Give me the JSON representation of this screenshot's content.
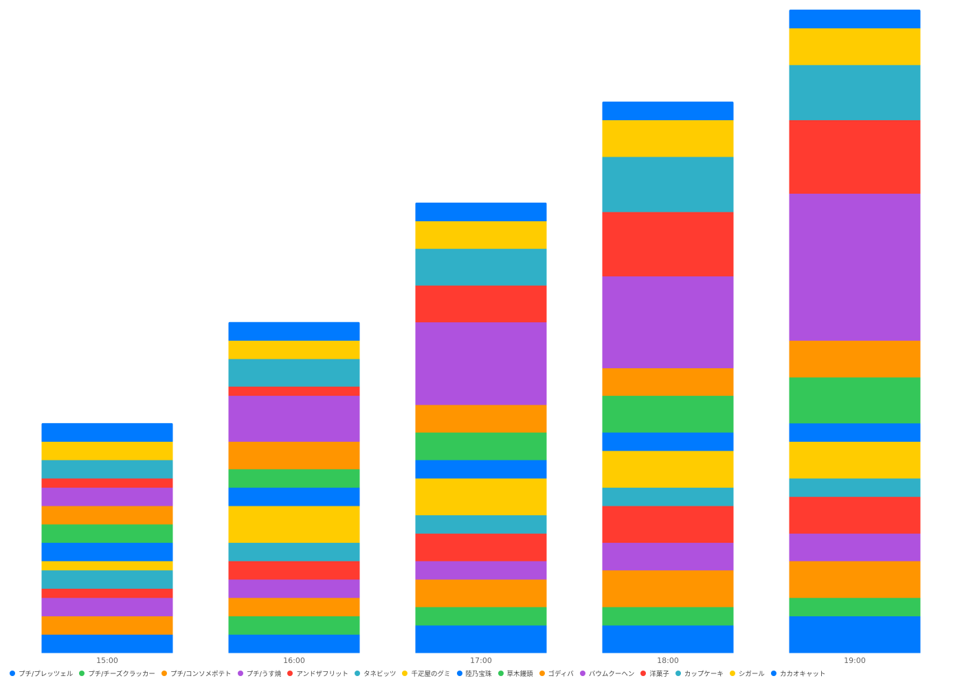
{
  "chart_data": {
    "type": "bar",
    "stacked": true,
    "categories": [
      "15:00",
      "16:00",
      "17:00",
      "18:00",
      "19:00"
    ],
    "ylim": [
      0,
      70
    ],
    "legend_position": "bottom",
    "grid": false,
    "series": [
      {
        "name": "プチ/プレッツェル",
        "color": "#007aff",
        "values": [
          2,
          2,
          3,
          3,
          4
        ]
      },
      {
        "name": "プチ/チーズクラッカー",
        "color": "#34c759",
        "values": [
          0,
          2,
          2,
          2,
          2
        ]
      },
      {
        "name": "プチ/コンソメポテト",
        "color": "#ff9500",
        "values": [
          2,
          2,
          3,
          4,
          4
        ]
      },
      {
        "name": "プチ/うす焼",
        "color": "#af52de",
        "values": [
          2,
          2,
          2,
          3,
          3
        ]
      },
      {
        "name": "アンドザフリット",
        "color": "#ff3b30",
        "values": [
          1,
          2,
          3,
          4,
          4
        ]
      },
      {
        "name": "タネビッツ",
        "color": "#30b0c7",
        "values": [
          2,
          2,
          2,
          2,
          2
        ]
      },
      {
        "name": "千疋屋のグミ",
        "color": "#ffcc00",
        "values": [
          1,
          4,
          4,
          4,
          4
        ]
      },
      {
        "name": "陸乃宝珠",
        "color": "#007aff",
        "values": [
          2,
          2,
          2,
          2,
          2
        ]
      },
      {
        "name": "草木饅頭",
        "color": "#34c759",
        "values": [
          2,
          2,
          3,
          4,
          5
        ]
      },
      {
        "name": "ゴディバ",
        "color": "#ff9500",
        "values": [
          2,
          3,
          3,
          3,
          4
        ]
      },
      {
        "name": "バウムクーヘン",
        "color": "#af52de",
        "values": [
          2,
          5,
          9,
          10,
          16
        ]
      },
      {
        "name": "洋菓子",
        "color": "#ff3b30",
        "values": [
          1,
          1,
          4,
          7,
          8
        ]
      },
      {
        "name": "カップケーキ",
        "color": "#30b0c7",
        "values": [
          2,
          3,
          4,
          6,
          6
        ]
      },
      {
        "name": "シガール",
        "color": "#ffcc00",
        "values": [
          2,
          2,
          3,
          4,
          4
        ]
      },
      {
        "name": "カカオキャット",
        "color": "#007aff",
        "values": [
          2,
          2,
          2,
          2,
          2
        ]
      }
    ]
  }
}
